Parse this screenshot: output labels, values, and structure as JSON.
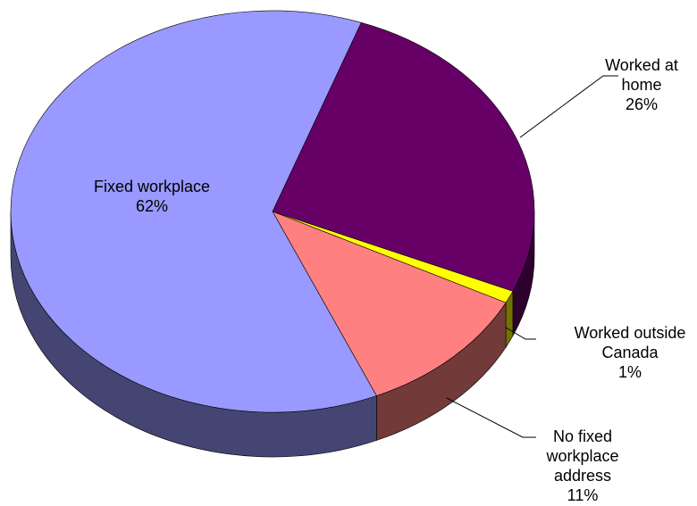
{
  "chart_data": {
    "type": "pie",
    "categories": [
      "Worked at home",
      "Worked outside Canada",
      "No fixed workplace address",
      "Fixed workplace"
    ],
    "values": [
      26,
      1,
      11,
      62
    ],
    "value_labels": [
      "26%",
      "1%",
      "11%",
      "62%"
    ],
    "colors": [
      "#660066",
      "#ffff00",
      "#ff8080",
      "#9999ff"
    ]
  }
}
